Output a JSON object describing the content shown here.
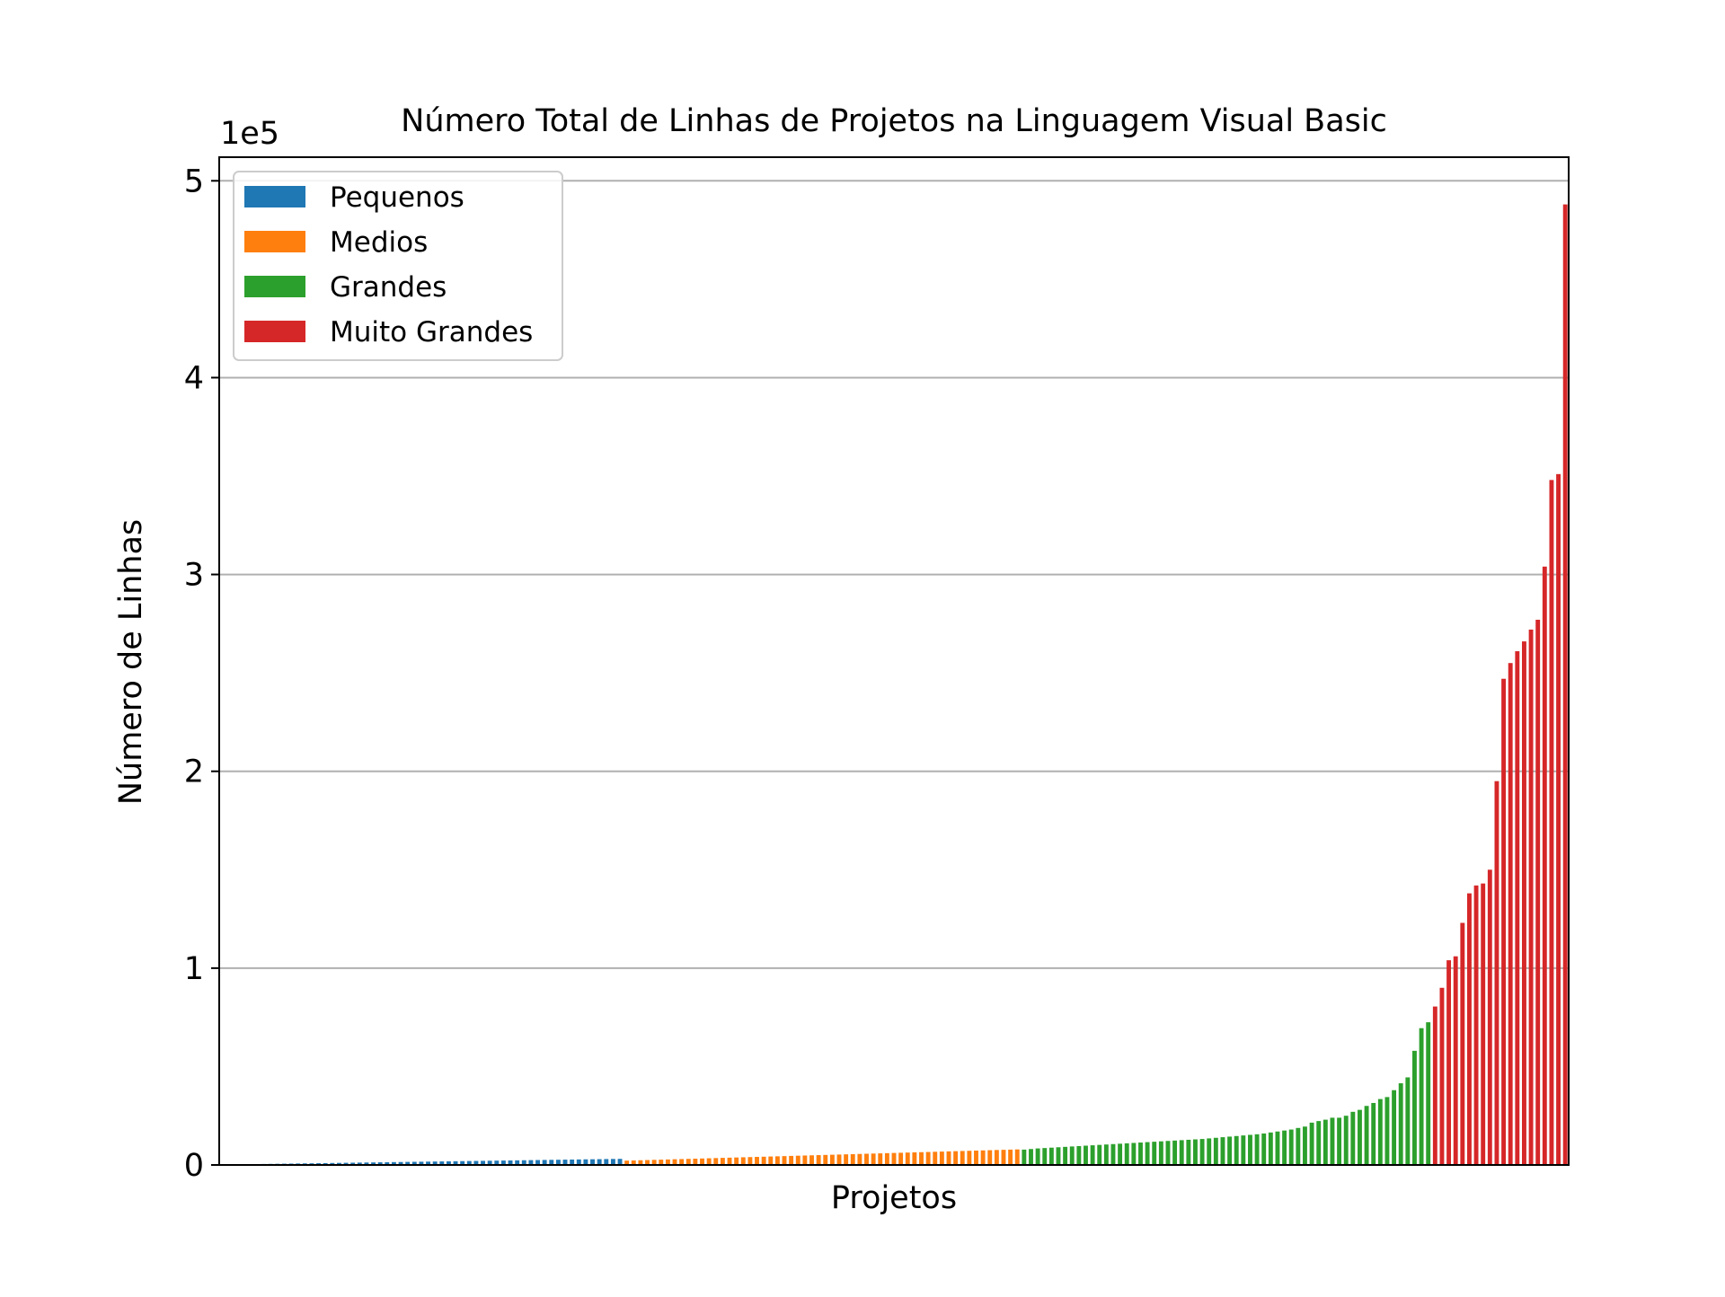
{
  "chart_data": {
    "type": "bar",
    "title": "Número Total de Linhas de Projetos na Linguagem Visual Basic",
    "xlabel": "Projetos",
    "ylabel": "Número de Linhas",
    "y_offset_label": "1e5",
    "ylim": [
      0,
      512000
    ],
    "yticks": [
      0,
      1,
      2,
      3,
      4,
      5
    ],
    "ytick_labels": [
      "0",
      "1",
      "2",
      "3",
      "4",
      "5"
    ],
    "grid": "horizontal",
    "legend_position": "upper-left",
    "series": [
      {
        "name": "Pequenos",
        "color": "#1f77b4",
        "values": [
          200,
          250,
          300,
          350,
          400,
          450,
          500,
          550,
          600,
          650,
          700,
          750,
          800,
          850,
          900,
          950,
          1000,
          1050,
          1100,
          1150,
          1200,
          1250,
          1300,
          1350,
          1400,
          1450,
          1500,
          1550,
          1600,
          1650,
          1700,
          1750,
          1800,
          1850,
          1900,
          1950,
          2000,
          2050,
          2100,
          2150,
          2200,
          2250,
          2300,
          2350,
          2400,
          2450,
          2500,
          2550,
          2600,
          2650,
          2700,
          2750,
          2800,
          2850,
          2900,
          2950,
          3000,
          3050,
          3100
        ]
      },
      {
        "name": "Medios",
        "color": "#ff7f0e",
        "values": [
          2200,
          2300,
          2400,
          2500,
          2600,
          2700,
          2800,
          2900,
          3000,
          3100,
          3200,
          3300,
          3400,
          3500,
          3600,
          3700,
          3800,
          3900,
          4000,
          4100,
          4200,
          4300,
          4400,
          4500,
          4600,
          4700,
          4800,
          4900,
          5000,
          5100,
          5200,
          5300,
          5400,
          5500,
          5600,
          5700,
          5800,
          5900,
          6000,
          6100,
          6200,
          6300,
          6400,
          6500,
          6600,
          6700,
          6800,
          6900,
          7000,
          7100,
          7200,
          7300,
          7400,
          7500,
          7600,
          7700,
          7800,
          7900
        ]
      },
      {
        "name": "Grandes",
        "color": "#2ca02c",
        "values": [
          7800,
          8100,
          8400,
          8600,
          8800,
          9000,
          9200,
          9400,
          9600,
          9800,
          10000,
          10200,
          10400,
          10600,
          10800,
          11000,
          11200,
          11400,
          11600,
          11800,
          12000,
          12200,
          12400,
          12600,
          12800,
          13000,
          13200,
          13500,
          13800,
          14100,
          14400,
          14700,
          15000,
          15300,
          15600,
          16000,
          16500,
          17000,
          17500,
          18000,
          18800,
          19500,
          21500,
          22300,
          23000,
          24000,
          24000,
          25000,
          27000,
          28000,
          30000,
          31500,
          33500,
          34500,
          38000,
          41500,
          44500,
          58000,
          69500,
          72500
        ]
      },
      {
        "name": "Muito Grandes",
        "color": "#d62728",
        "values": [
          80500,
          90000,
          104000,
          106000,
          123000,
          138000,
          142000,
          143000,
          150000,
          195000,
          247000,
          255000,
          261000,
          266000,
          272000,
          277000,
          304000,
          348000,
          351000,
          488000
        ]
      }
    ]
  }
}
